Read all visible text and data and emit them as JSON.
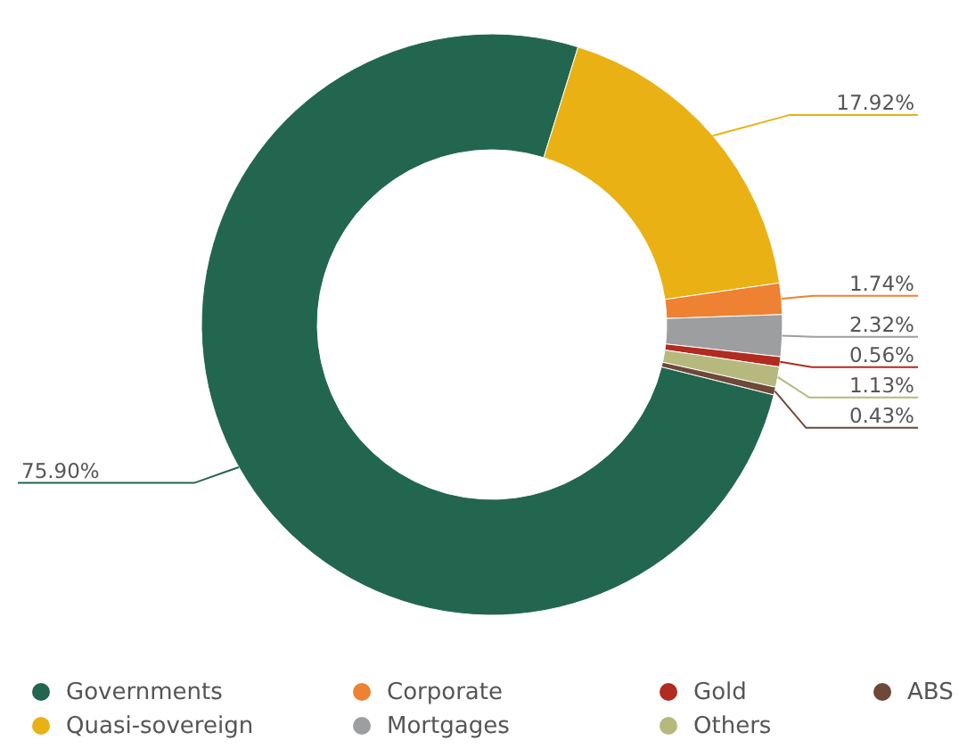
{
  "chart_data": {
    "type": "donut",
    "categories": [
      "Governments",
      "Quasi-sovereign",
      "Corporate",
      "Mortgages",
      "Gold",
      "Others",
      "ABS"
    ],
    "values": [
      75.9,
      17.92,
      1.74,
      2.32,
      0.56,
      1.13,
      0.43
    ],
    "colors": [
      "#236650",
      "#e9b114",
      "#ee8132",
      "#9d9ea0",
      "#b22b20",
      "#b6b97e",
      "#6e4838"
    ],
    "value_labels": [
      "75.90%",
      "17.92%",
      "1.74%",
      "2.32%",
      "0.56%",
      "1.13%",
      "0.43%"
    ],
    "legend": "bottom"
  }
}
